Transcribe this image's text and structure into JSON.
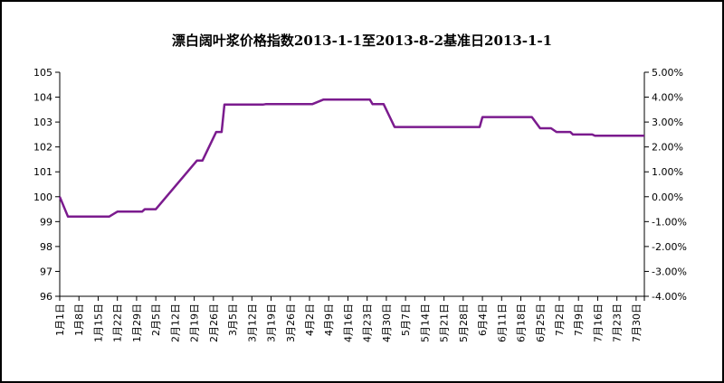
{
  "chart_data": {
    "type": "line",
    "title": "漂白阔叶浆价格指数2013-1-1至2013-8-2基准日2013-1-1",
    "ylim": [
      96,
      105
    ],
    "y_ticks": [
      "96",
      "97",
      "98",
      "99",
      "100",
      "101",
      "102",
      "103",
      "104",
      "105"
    ],
    "y2lim": [
      -0.04,
      0.05
    ],
    "y2_ticks": [
      "-4.00%",
      "-3.00%",
      "-2.00%",
      "-1.00%",
      "0.00%",
      "1.00%",
      "2.00%",
      "3.00%",
      "4.00%",
      "5.00%"
    ],
    "x_range": [
      "2013-01-01",
      "2013-08-02"
    ],
    "x_ticks": [
      {
        "date": "2013-01-01",
        "label": "1月1日"
      },
      {
        "date": "2013-01-08",
        "label": "1月8日"
      },
      {
        "date": "2013-01-15",
        "label": "1月15日"
      },
      {
        "date": "2013-01-22",
        "label": "1月22日"
      },
      {
        "date": "2013-01-29",
        "label": "1月29日"
      },
      {
        "date": "2013-02-05",
        "label": "2月5日"
      },
      {
        "date": "2013-02-12",
        "label": "2月12日"
      },
      {
        "date": "2013-02-19",
        "label": "2月19日"
      },
      {
        "date": "2013-02-26",
        "label": "2月26日"
      },
      {
        "date": "2013-03-05",
        "label": "3月5日"
      },
      {
        "date": "2013-03-12",
        "label": "3月12日"
      },
      {
        "date": "2013-03-19",
        "label": "3月19日"
      },
      {
        "date": "2013-03-26",
        "label": "3月26日"
      },
      {
        "date": "2013-04-02",
        "label": "4月2日"
      },
      {
        "date": "2013-04-09",
        "label": "4月9日"
      },
      {
        "date": "2013-04-16",
        "label": "4月16日"
      },
      {
        "date": "2013-04-23",
        "label": "4月23日"
      },
      {
        "date": "2013-04-30",
        "label": "4月30日"
      },
      {
        "date": "2013-05-07",
        "label": "5月7日"
      },
      {
        "date": "2013-05-14",
        "label": "5月14日"
      },
      {
        "date": "2013-05-21",
        "label": "5月21日"
      },
      {
        "date": "2013-05-28",
        "label": "5月28日"
      },
      {
        "date": "2013-06-04",
        "label": "6月4日"
      },
      {
        "date": "2013-06-11",
        "label": "6月11日"
      },
      {
        "date": "2013-06-18",
        "label": "6月18日"
      },
      {
        "date": "2013-06-25",
        "label": "6月25日"
      },
      {
        "date": "2013-07-02",
        "label": "7月2日"
      },
      {
        "date": "2013-07-09",
        "label": "7月9日"
      },
      {
        "date": "2013-07-16",
        "label": "7月16日"
      },
      {
        "date": "2013-07-23",
        "label": "7月23日"
      },
      {
        "date": "2013-07-30",
        "label": "7月30日"
      }
    ],
    "grid": false,
    "legend": "none",
    "line_color": "#7B1B8E",
    "series": [
      {
        "points": [
          [
            "2013-01-01",
            100.0
          ],
          [
            "2013-01-04",
            99.2
          ],
          [
            "2013-01-19",
            99.2
          ],
          [
            "2013-01-22",
            99.4
          ],
          [
            "2013-01-31",
            99.4
          ],
          [
            "2013-02-01",
            99.5
          ],
          [
            "2013-02-05",
            99.5
          ],
          [
            "2013-02-20",
            101.45
          ],
          [
            "2013-02-22",
            101.45
          ],
          [
            "2013-02-27",
            102.6
          ],
          [
            "2013-03-01",
            102.6
          ],
          [
            "2013-03-02",
            103.7
          ],
          [
            "2013-03-16",
            103.7
          ],
          [
            "2013-03-17",
            103.72
          ],
          [
            "2013-04-03",
            103.72
          ],
          [
            "2013-04-07",
            103.9
          ],
          [
            "2013-04-24",
            103.9
          ],
          [
            "2013-04-25",
            103.72
          ],
          [
            "2013-04-29",
            103.72
          ],
          [
            "2013-05-03",
            102.8
          ],
          [
            "2013-06-03",
            102.8
          ],
          [
            "2013-06-04",
            103.2
          ],
          [
            "2013-06-22",
            103.2
          ],
          [
            "2013-06-25",
            102.75
          ],
          [
            "2013-06-29",
            102.75
          ],
          [
            "2013-07-01",
            102.6
          ],
          [
            "2013-07-06",
            102.6
          ],
          [
            "2013-07-07",
            102.5
          ],
          [
            "2013-07-14",
            102.5
          ],
          [
            "2013-07-15",
            102.45
          ],
          [
            "2013-08-02",
            102.45
          ]
        ]
      }
    ]
  }
}
